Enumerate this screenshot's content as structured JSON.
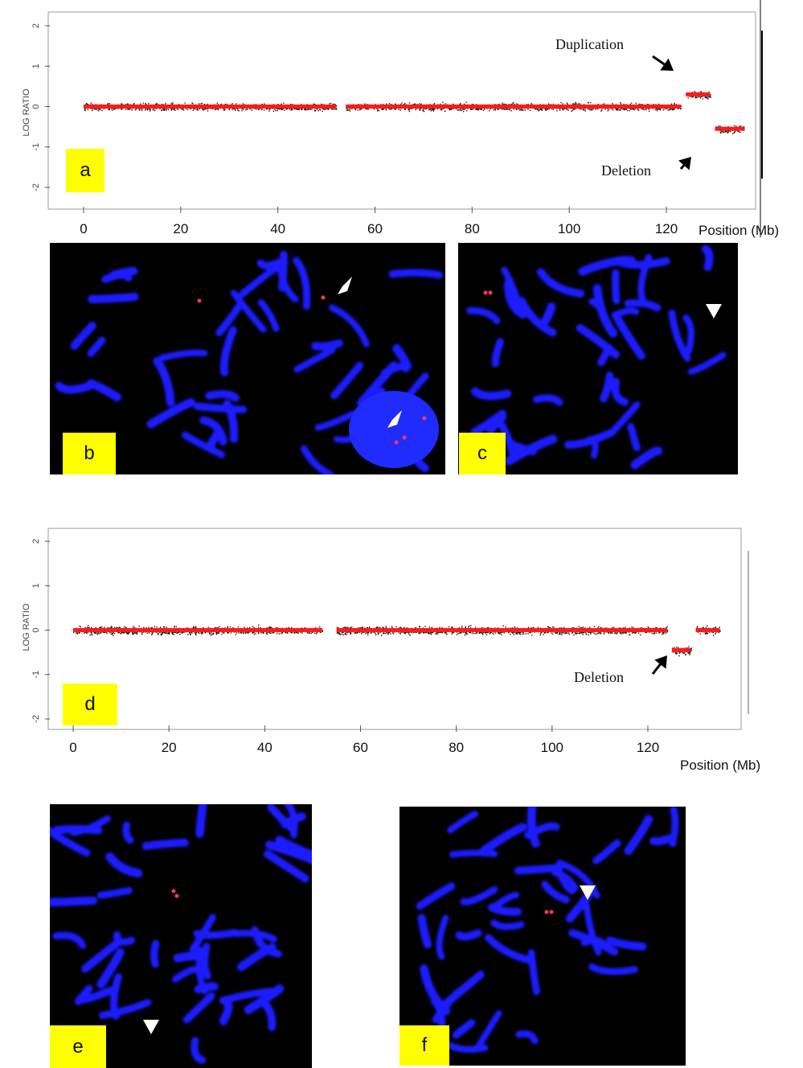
{
  "colors": {
    "segment": "#ff1a1a",
    "points": "#1a1a1a",
    "label_box": "#ffff00",
    "chromosome": "#1a1aff",
    "fish_signal": "#ff3366",
    "background": "#000000"
  },
  "panels": {
    "a": "a",
    "b": "b",
    "c": "c",
    "d": "d",
    "e": "e",
    "f": "f"
  },
  "chart_data": [
    {
      "type": "scatter",
      "panel": "a",
      "ylabel": "LOG RATIO",
      "xlabel": "Position (Mb)",
      "xlim": [
        0,
        138
      ],
      "ylim": [
        -2.2,
        2.2
      ],
      "x_ticks": [
        "0",
        "20",
        "40",
        "60",
        "80",
        "100",
        "120"
      ],
      "y_ticks": [
        "2",
        "1",
        "0",
        "-1",
        "-2"
      ],
      "segments": [
        {
          "x": [
            0,
            52
          ],
          "y": 0.0
        },
        {
          "x": [
            54,
            123
          ],
          "y": 0.0
        },
        {
          "x": [
            124,
            129
          ],
          "y": 0.3
        },
        {
          "x": [
            130,
            136
          ],
          "y": -0.55
        }
      ],
      "annotations": [
        {
          "text": "Duplication",
          "x": 127,
          "y": 0.6
        },
        {
          "text": "Deletion",
          "x": 130,
          "y": -1.3
        }
      ]
    },
    {
      "type": "scatter",
      "panel": "d",
      "ylabel": "LOG RATIO",
      "xlabel": "Position (Mb)",
      "xlim": [
        0,
        138
      ],
      "ylim": [
        -2.2,
        2.2
      ],
      "x_ticks": [
        "0",
        "20",
        "40",
        "60",
        "80",
        "100",
        "120"
      ],
      "y_ticks": [
        "2",
        "1",
        "0",
        "-1",
        "-2"
      ],
      "segments": [
        {
          "x": [
            0,
            52
          ],
          "y": 0.0
        },
        {
          "x": [
            55,
            124
          ],
          "y": 0.0
        },
        {
          "x": [
            125,
            129
          ],
          "y": -0.45
        },
        {
          "x": [
            130,
            135
          ],
          "y": 0.0
        }
      ],
      "annotations": [
        {
          "text": "Deletion",
          "x": 127,
          "y": -0.55
        }
      ]
    }
  ]
}
